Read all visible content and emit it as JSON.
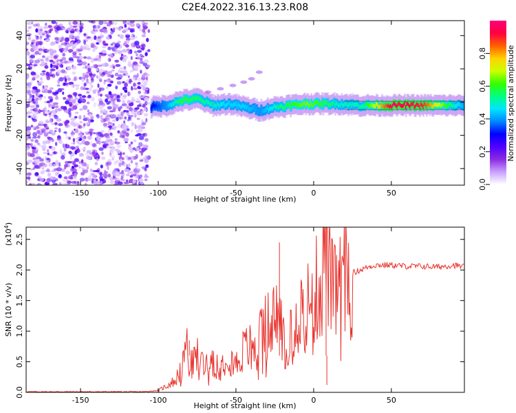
{
  "title": "C2E4.2022.316.13.23.R08",
  "colors": {
    "snr_line": "#e8322c",
    "axis": "#000000",
    "colorbar_stops": [
      "#ffffff",
      "#c9a0ff",
      "#8a2be2",
      "#5000ff",
      "#0000ff",
      "#0088ff",
      "#00e5ff",
      "#00ff80",
      "#33ff00",
      "#ccff00",
      "#ffd200",
      "#ff6000",
      "#ff0040",
      "#ff0078"
    ]
  },
  "chart_data": [
    {
      "type": "heatmap",
      "title": "C2E4.2022.316.13.23.R08",
      "xlabel": "Height of straight line (km)",
      "ylabel": "Frequency (Hz)",
      "xlim": [
        -185,
        97
      ],
      "ylim": [
        -50,
        49
      ],
      "x_ticks": [
        "-150",
        "-100",
        "-50",
        "0",
        "50"
      ],
      "y_ticks": [
        "-40",
        "-20",
        "0",
        "20",
        "40"
      ],
      "colorbar": {
        "label": "Normalized spectral amplitude",
        "range": [
          0,
          1
        ],
        "ticks": [
          "0.0",
          "0.2",
          "0.4",
          "0.6",
          "0.8"
        ]
      },
      "noise_region_x": [
        -185,
        -106
      ],
      "signal_ridge": {
        "x": [
          -105,
          -95,
          -85,
          -75,
          -65,
          -55,
          -45,
          -35,
          -25,
          -15,
          -5,
          5,
          15,
          30,
          50,
          70,
          90,
          97
        ],
        "frequency": [
          -3,
          -2,
          1,
          2,
          -2,
          -1,
          -3,
          -5,
          -3,
          -2,
          -1,
          -1,
          -1,
          -2,
          -2,
          -2,
          -2,
          -2
        ],
        "amplitude": [
          0.3,
          0.4,
          0.6,
          0.55,
          0.5,
          0.45,
          0.45,
          0.4,
          0.5,
          0.6,
          0.65,
          0.6,
          0.5,
          0.5,
          0.95,
          0.9,
          0.5,
          0.4
        ]
      },
      "side_streak": {
        "x": [
          -68,
          -60,
          -52,
          -45,
          -40,
          -35
        ],
        "frequency": [
          6,
          8,
          10,
          12,
          14,
          18
        ]
      }
    },
    {
      "type": "line",
      "xlabel": "Height of straight line (km)",
      "ylabel": "SNR (10 * v/v)",
      "y_exponent_label": "(x10",
      "y_exponent_power": "4",
      "xlim": [
        -185,
        97
      ],
      "ylim": [
        0,
        2.7
      ],
      "x_ticks": [
        "-150",
        "-100",
        "-50",
        "0",
        "50"
      ],
      "y_ticks": [
        "0.0",
        "0.5",
        "1.0",
        "1.5",
        "2.0",
        "2.5"
      ],
      "series": [
        {
          "x": [
            -185,
            -110,
            -100,
            -95,
            -90,
            -85,
            -82,
            -80,
            -75,
            -70,
            -65,
            -60,
            -55,
            -50,
            -45,
            -40,
            -35,
            -30,
            -25,
            -22,
            -20,
            -15,
            -10,
            -5,
            0,
            3,
            5,
            8,
            10,
            13,
            15,
            20,
            25,
            30,
            35,
            40,
            50,
            60,
            70,
            80,
            90,
            97
          ],
          "y": [
            0.01,
            0.01,
            0.03,
            0.1,
            0.18,
            0.35,
            0.85,
            0.4,
            0.6,
            0.45,
            0.55,
            0.4,
            0.7,
            0.45,
            0.7,
            0.75,
            0.85,
            1.1,
            1.2,
            1.3,
            0.9,
            1.1,
            1.3,
            1.4,
            1.5,
            1.8,
            1.7,
            2.7,
            1.9,
            1.55,
            1.7,
            1.85,
            1.95,
            2.0,
            2.05,
            2.08,
            2.08,
            2.06,
            2.06,
            2.05,
            2.08,
            2.05
          ]
        }
      ]
    }
  ]
}
